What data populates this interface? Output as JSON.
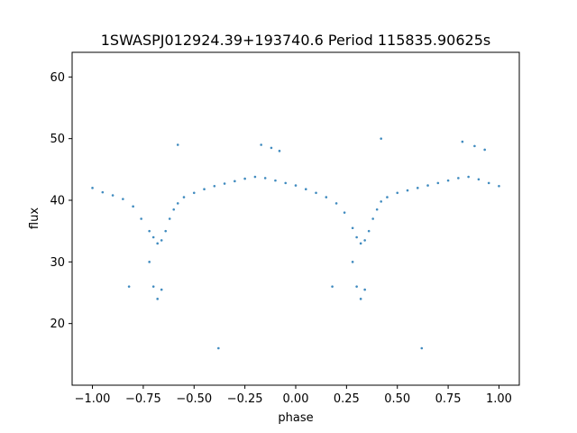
{
  "chart_data": {
    "type": "scatter",
    "title": "1SWASPJ012924.39+193740.6 Period 115835.90625s",
    "xlabel": "phase",
    "ylabel": "flux",
    "xlim": [
      -1.1,
      1.1
    ],
    "ylim": [
      10,
      64
    ],
    "xticks": [
      -1.0,
      -0.75,
      -0.5,
      -0.25,
      0.0,
      0.25,
      0.5,
      0.75,
      1.0
    ],
    "xtick_labels": [
      "−1.00",
      "−0.75",
      "−0.50",
      "−0.25",
      "0.00",
      "0.25",
      "0.50",
      "0.75",
      "1.00"
    ],
    "yticks": [
      20,
      30,
      40,
      50,
      60
    ],
    "ytick_labels": [
      "20",
      "30",
      "40",
      "50",
      "60"
    ],
    "grid": false,
    "point_color": "#1f77b4",
    "series": [
      {
        "x": [
          -1.0,
          -0.95,
          -0.9,
          -0.85,
          -0.8,
          -0.76,
          -0.72,
          -0.7,
          -0.68,
          -0.66,
          -0.64,
          -0.62,
          -0.6,
          -0.58,
          -0.55,
          -0.5,
          -0.45,
          -0.4,
          -0.35,
          -0.3,
          -0.25,
          -0.2,
          -0.15,
          -0.1,
          -0.05,
          0.0,
          0.05,
          0.1,
          0.15,
          0.2,
          0.24,
          0.28,
          0.3,
          0.32,
          0.34,
          0.36,
          0.38,
          0.4,
          0.42,
          0.45,
          0.5,
          0.55,
          0.6,
          0.65,
          0.7,
          0.75,
          0.8,
          0.85,
          0.9,
          0.95,
          1.0,
          -0.7,
          -0.68,
          -0.66,
          -0.72,
          0.3,
          0.32,
          0.34,
          0.28,
          -0.17,
          -0.12,
          -0.08,
          0.82,
          0.88,
          0.93,
          -0.38,
          0.62,
          -0.58,
          0.42,
          -0.82,
          0.18
        ],
        "y": [
          42,
          41.3,
          40.8,
          40.2,
          39,
          37,
          35,
          34,
          33,
          33.5,
          35,
          37,
          38.5,
          39.5,
          40.5,
          41.2,
          41.8,
          42.3,
          42.7,
          43.1,
          43.5,
          43.8,
          43.6,
          43.2,
          42.8,
          42.4,
          41.8,
          41.2,
          40.5,
          39.5,
          38,
          35.5,
          34,
          33,
          33.5,
          35,
          37,
          38.5,
          39.8,
          40.5,
          41.2,
          41.6,
          42,
          42.4,
          42.8,
          43.2,
          43.6,
          43.8,
          43.4,
          42.8,
          42.3,
          26,
          24,
          25.5,
          30,
          26,
          24,
          25.5,
          30,
          49,
          48.5,
          48,
          49.5,
          48.8,
          48.2,
          16,
          16,
          49,
          50,
          26,
          26
        ]
      }
    ]
  }
}
